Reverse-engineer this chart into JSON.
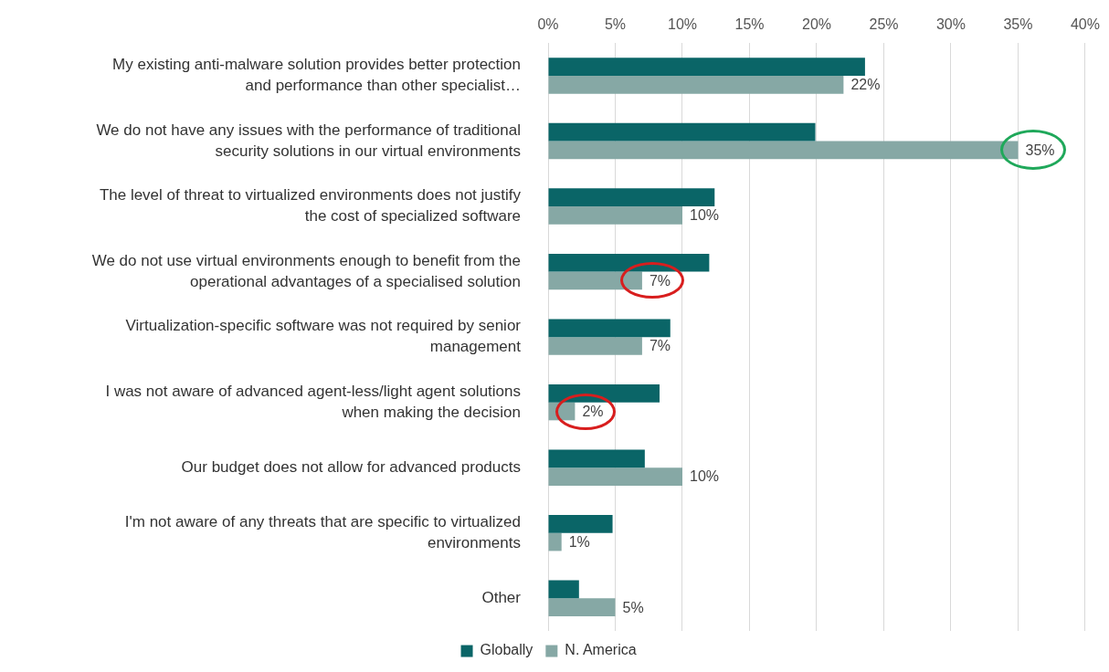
{
  "chart_data": {
    "type": "bar",
    "orientation": "horizontal",
    "categories": [
      "My existing anti-malware solution provides better protection and performance than other specialist…",
      "We do not have any issues with the performance of traditional security solutions in our virtual environments",
      "The level of threat to virtualized environments does not justify the cost of specialized software",
      "We do not use virtual environments enough to benefit from the operational advantages of a specialised solution",
      "Virtualization-specific software was not required by senior management",
      "I was not aware of advanced agent-less/light agent solutions when making the decision",
      "Our budget does not allow for advanced products",
      "I'm not aware of any threats that are specific to virtualized environments",
      "Other"
    ],
    "series": [
      {
        "name": "Globally",
        "color": "#0a6567",
        "values": [
          23.6,
          19.9,
          12.4,
          12.0,
          9.1,
          8.3,
          7.2,
          4.8,
          2.3
        ]
      },
      {
        "name": "N. America",
        "color": "#86a8a5",
        "values": [
          22,
          35,
          10,
          7,
          7,
          2,
          10,
          1,
          5
        ],
        "value_labels": [
          "22%",
          "35%",
          "10%",
          "7%",
          "7%",
          "2%",
          "10%",
          "1%",
          "5%"
        ]
      }
    ],
    "xlim": [
      0,
      40
    ],
    "xticks": [
      {
        "value": 0,
        "label": "0%"
      },
      {
        "value": 5,
        "label": "5%"
      },
      {
        "value": 10,
        "label": "10%"
      },
      {
        "value": 15,
        "label": "15%"
      },
      {
        "value": 20,
        "label": "20%"
      },
      {
        "value": 25,
        "label": "25%"
      },
      {
        "value": 30,
        "label": "30%"
      },
      {
        "value": 35,
        "label": "35%"
      },
      {
        "value": 40,
        "label": "40%"
      }
    ],
    "grid": "x",
    "legend": "bottom"
  }
}
